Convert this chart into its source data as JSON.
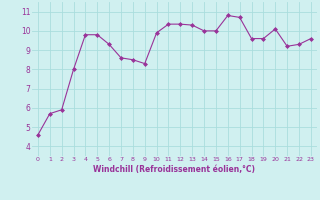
{
  "x": [
    0,
    1,
    2,
    3,
    4,
    5,
    6,
    7,
    8,
    9,
    10,
    11,
    12,
    13,
    14,
    15,
    16,
    17,
    18,
    19,
    20,
    21,
    22,
    23
  ],
  "y": [
    4.6,
    5.7,
    5.9,
    8.0,
    9.8,
    9.8,
    9.3,
    8.6,
    8.5,
    8.3,
    9.9,
    10.35,
    10.35,
    10.3,
    10.0,
    10.0,
    10.8,
    10.7,
    9.6,
    9.6,
    10.1,
    9.2,
    9.3,
    9.6
  ],
  "line_color": "#993399",
  "marker": "D",
  "marker_size": 2,
  "bg_color": "#d0f0f0",
  "grid_color": "#aadddd",
  "xlabel": "Windchill (Refroidissement éolien,°C)",
  "xlabel_color": "#993399",
  "tick_color": "#993399",
  "xlim": [
    -0.5,
    23.5
  ],
  "ylim": [
    3.5,
    11.5
  ],
  "yticks": [
    4,
    5,
    6,
    7,
    8,
    9,
    10,
    11
  ],
  "xticks": [
    0,
    1,
    2,
    3,
    4,
    5,
    6,
    7,
    8,
    9,
    10,
    11,
    12,
    13,
    14,
    15,
    16,
    17,
    18,
    19,
    20,
    21,
    22,
    23
  ],
  "figsize": [
    3.2,
    2.0
  ],
  "dpi": 100
}
